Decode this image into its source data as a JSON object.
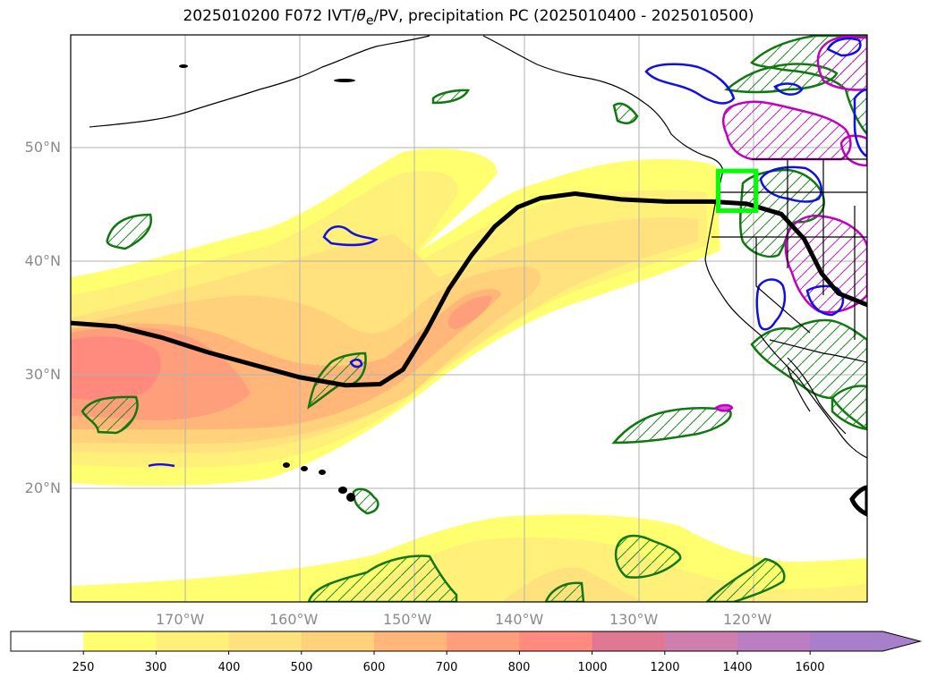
{
  "title": {
    "prefix": "2025010200 F072 IVT/",
    "theta": "θ",
    "sub": "e",
    "suffix": "/PV, precipitation PC (2025010400 - 2025010500)"
  },
  "map": {
    "projection": "equirectangular",
    "extent": {
      "lon_min": -180,
      "lon_max": -110.5,
      "lat_min": 10,
      "lat_max": 60
    },
    "grid": true,
    "lon_ticks": [
      {
        "value": -170,
        "label": "170°W"
      },
      {
        "value": -160,
        "label": "160°W"
      },
      {
        "value": -150,
        "label": "150°W"
      },
      {
        "value": -140,
        "label": "140°W"
      },
      {
        "value": -130,
        "label": "130°W"
      },
      {
        "value": -120,
        "label": "120°W"
      }
    ],
    "lat_ticks": [
      {
        "value": 50,
        "label": "50°N"
      },
      {
        "value": 40,
        "label": "40°N"
      },
      {
        "value": 30,
        "label": "30°N"
      },
      {
        "value": 20,
        "label": "20°N"
      }
    ],
    "jet_axis": {
      "color": "#000000",
      "points": [
        [
          -180,
          34.6
        ],
        [
          -176,
          34.3
        ],
        [
          -172,
          33.3
        ],
        [
          -168,
          32.0
        ],
        [
          -164,
          30.9
        ],
        [
          -160,
          29.8
        ],
        [
          -156,
          29.1
        ],
        [
          -153,
          29.2
        ],
        [
          -151,
          30.5
        ],
        [
          -149,
          33.8
        ],
        [
          -147,
          37.6
        ],
        [
          -145,
          40.6
        ],
        [
          -143,
          43.1
        ],
        [
          -141,
          44.8
        ],
        [
          -139,
          45.6
        ],
        [
          -136,
          46.0
        ],
        [
          -132,
          45.5
        ],
        [
          -128,
          45.3
        ],
        [
          -124,
          45.3
        ],
        [
          -121,
          45.1
        ],
        [
          -118,
          44.2
        ],
        [
          -116,
          42.0
        ],
        [
          -114.5,
          39.0
        ],
        [
          -113,
          37.2
        ],
        [
          -110.5,
          36.2
        ]
      ]
    },
    "target_box": {
      "color": "#00ff00",
      "lon": [
        -123.5,
        -120.2
      ],
      "lat": [
        44.5,
        48.0
      ]
    }
  },
  "colorbar": {
    "levels": [
      "250",
      "300",
      "400",
      "500",
      "600",
      "700",
      "800",
      "1000",
      "1200",
      "1400",
      "1600"
    ],
    "colors": [
      "#ffff70",
      "#fff07a",
      "#ffe27e",
      "#ffd17a",
      "#ffb678",
      "#ff9e7a",
      "#ff8a7d",
      "#e07893",
      "#cf7fae",
      "#bb7ec2",
      "#a77fca"
    ],
    "under_color": "#ffffff",
    "extend": "max"
  }
}
